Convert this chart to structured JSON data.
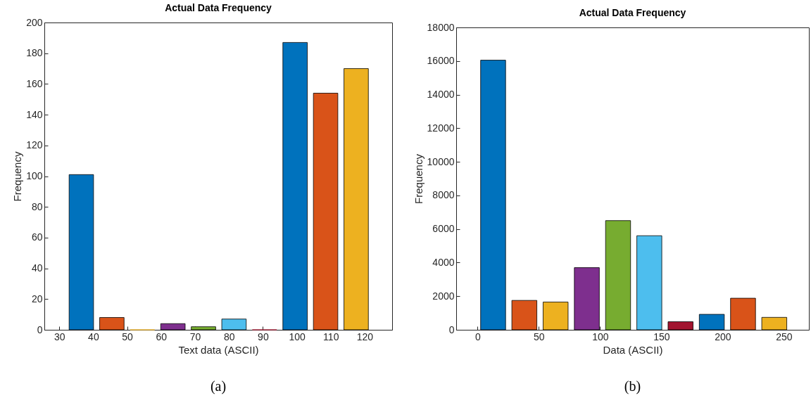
{
  "chart_data": [
    {
      "type": "bar",
      "title": "Actual Data Frequency",
      "xlabel": "Text data (ASCII)",
      "ylabel": "Frequency",
      "x": [
        36.5,
        45.5,
        54.5,
        63.5,
        72.5,
        81.5,
        90.5,
        99.5,
        108.5,
        117.5
      ],
      "values": [
        101,
        8,
        0,
        4,
        2,
        7,
        0,
        187,
        154,
        170
      ],
      "colors": [
        "#0072bd",
        "#d95319",
        "#edb120",
        "#7e2f8e",
        "#77ac30",
        "#4dbeee",
        "#a2142f",
        "#0072bd",
        "#d95319",
        "#edb120"
      ],
      "xlim": [
        25.6,
        128.1
      ],
      "xticks": [
        30,
        40,
        50,
        60,
        70,
        80,
        90,
        100,
        110,
        120
      ],
      "ylim": [
        0,
        200
      ],
      "yticks": [
        0,
        20,
        40,
        60,
        80,
        100,
        120,
        140,
        160,
        180,
        200
      ],
      "annotations": [
        "(a)"
      ]
    },
    {
      "type": "bar",
      "title": "Actual Data Frequency",
      "xlabel": "Data (ASCII)",
      "ylabel": "Frequency",
      "x": [
        12.75,
        38.25,
        63.75,
        89.25,
        114.75,
        140.25,
        165.75,
        191.25,
        216.75,
        242.25
      ],
      "values": [
        16050,
        1750,
        1650,
        3700,
        6500,
        5600,
        480,
        920,
        1880,
        740
      ],
      "colors": [
        "#0072bd",
        "#d95319",
        "#edb120",
        "#7e2f8e",
        "#77ac30",
        "#4dbeee",
        "#a2142f",
        "#0072bd",
        "#d95319",
        "#edb120"
      ],
      "xlim": [
        -17.4,
        270.5
      ],
      "xticks": [
        0,
        50,
        100,
        150,
        200,
        250
      ],
      "ylim": [
        0,
        18000
      ],
      "yticks": [
        0,
        2000,
        4000,
        6000,
        8000,
        10000,
        12000,
        14000,
        16000,
        18000
      ],
      "annotations": [
        "(b)"
      ]
    }
  ]
}
